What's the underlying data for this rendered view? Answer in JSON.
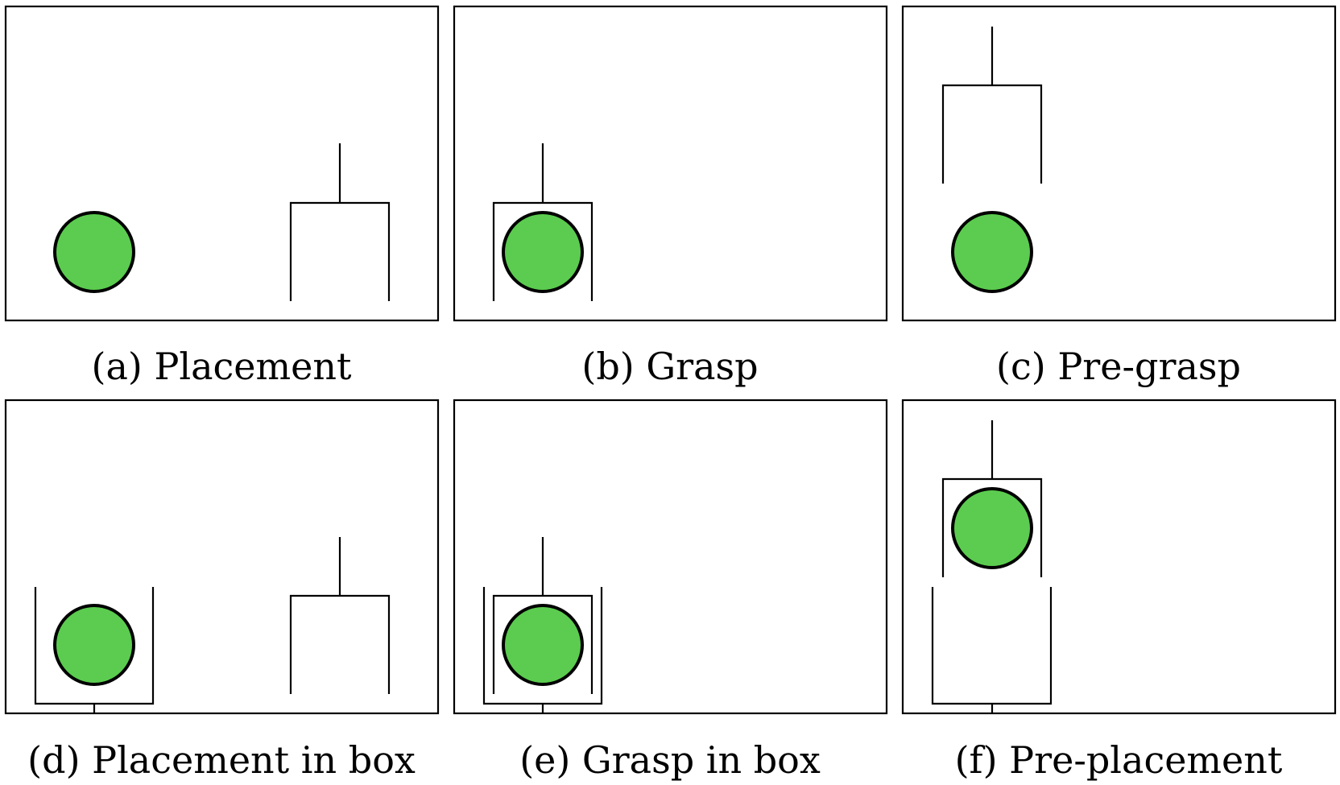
{
  "colors": {
    "ball": "#5bcc4f",
    "stroke": "#000000",
    "background": "#ffffff"
  },
  "panels": [
    {
      "id": "a",
      "caption": "(a) Placement"
    },
    {
      "id": "b",
      "caption": "(b) Grasp"
    },
    {
      "id": "c",
      "caption": "(c) Pre-grasp"
    },
    {
      "id": "d",
      "caption": "(d) Placement in box"
    },
    {
      "id": "e",
      "caption": "(e) Grasp in box"
    },
    {
      "id": "f",
      "caption": "(f) Pre-placement"
    }
  ]
}
